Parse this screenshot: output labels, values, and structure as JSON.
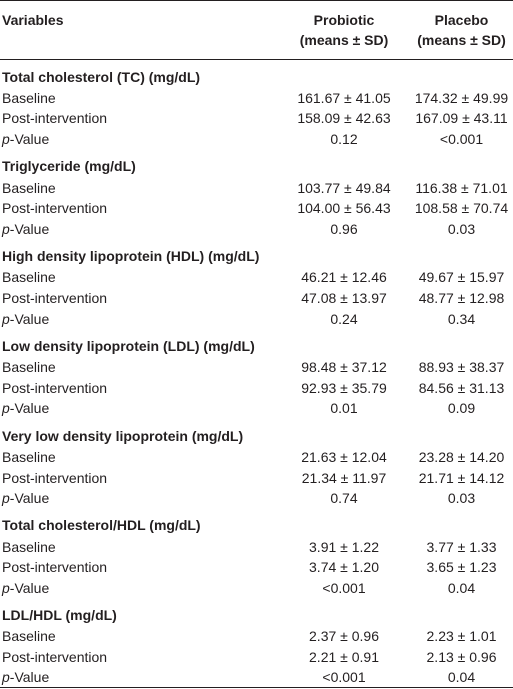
{
  "table": {
    "header": [
      [
        "Variables"
      ],
      [
        "Probiotic",
        "(means ± SD)"
      ],
      [
        "Placebo",
        "(means ± SD)"
      ]
    ],
    "sections": [
      {
        "title": "Total cholesterol (TC) (mg/dL)",
        "rows": [
          [
            "Baseline",
            "161.67 ± 41.05",
            "174.32 ± 49.99"
          ],
          [
            "Post-intervention",
            "158.09 ± 42.63",
            "167.09 ± 43.11"
          ],
          [
            "p-Value",
            "0.12",
            "<0.001"
          ]
        ]
      },
      {
        "title": "Triglyceride (mg/dL)",
        "rows": [
          [
            "Baseline",
            "103.77 ± 49.84",
            "116.38 ± 71.01"
          ],
          [
            "Post-intervention",
            "104.00 ± 56.43",
            "108.58 ± 70.74"
          ],
          [
            "p-Value",
            "0.96",
            "0.03"
          ]
        ]
      },
      {
        "title": "High density lipoprotein (HDL) (mg/dL)",
        "rows": [
          [
            "Baseline",
            "46.21 ± 12.46",
            "49.67 ± 15.97"
          ],
          [
            "Post-intervention",
            "47.08 ± 13.97",
            "48.77 ± 12.98"
          ],
          [
            "p-Value",
            "0.24",
            "0.34"
          ]
        ]
      },
      {
        "title": "Low density lipoprotein (LDL) (mg/dL)",
        "rows": [
          [
            "Baseline",
            "98.48 ± 37.12",
            "88.93 ± 38.37"
          ],
          [
            "Post-intervention",
            "92.93 ± 35.79",
            "84.56 ± 31.13"
          ],
          [
            "p-Value",
            "0.01",
            "0.09"
          ]
        ]
      },
      {
        "title": "Very low density lipoprotein (mg/dL)",
        "rows": [
          [
            "Baseline",
            "21.63 ± 12.04",
            "23.28 ± 14.20"
          ],
          [
            "Post-intervention",
            "21.34 ± 11.97",
            "21.71 ± 14.12"
          ],
          [
            "p-Value",
            "0.74",
            "0.03"
          ]
        ]
      },
      {
        "title": "Total cholesterol/HDL (mg/dL)",
        "rows": [
          [
            "Baseline",
            "3.91 ± 1.22",
            "3.77 ± 1.33"
          ],
          [
            "Post-intervention",
            "3.74 ± 1.20",
            "3.65 ± 1.23"
          ],
          [
            "p-Value",
            "<0.001",
            "0.04"
          ]
        ]
      },
      {
        "title": "LDL/HDL (mg/dL)",
        "rows": [
          [
            "Baseline",
            "2.37 ± 0.96",
            "2.23 ± 1.01"
          ],
          [
            "Post-intervention",
            "2.21 ± 0.91",
            "2.13 ± 0.96"
          ],
          [
            "p-Value",
            "<0.001",
            "0.04"
          ]
        ]
      }
    ]
  }
}
